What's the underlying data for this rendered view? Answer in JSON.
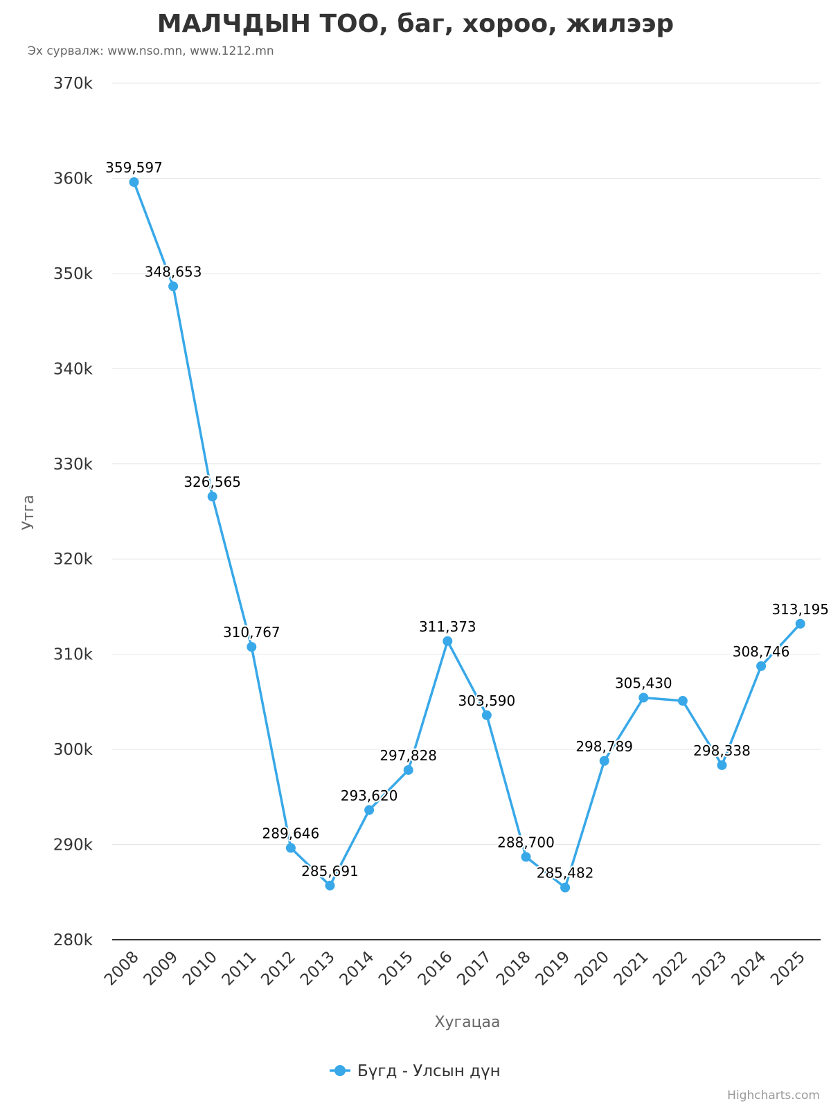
{
  "title": "МАЛЧДЫН ТОО, баг, хороо, жилээр",
  "subtitle": "Эх сурвалж: www.nso.mn, www.1212.mn",
  "credits": "Highcharts.com",
  "chart_data": {
    "type": "line",
    "title": "МАЛЧДЫН ТОО, баг, хороо, жилээр",
    "xlabel": "Хугацаа",
    "ylabel": "Утга",
    "ylim": [
      280000,
      370000
    ],
    "yticks": [
      280000,
      290000,
      300000,
      310000,
      320000,
      330000,
      340000,
      350000,
      360000,
      370000
    ],
    "ytick_labels": [
      "280k",
      "290k",
      "300k",
      "310k",
      "320k",
      "330k",
      "340k",
      "350k",
      "360k",
      "370k"
    ],
    "categories": [
      "2008",
      "2009",
      "2010",
      "2011",
      "2012",
      "2013",
      "2014",
      "2015",
      "2016",
      "2017",
      "2018",
      "2019",
      "2020",
      "2021",
      "2022",
      "2023",
      "2024",
      "2025"
    ],
    "series": [
      {
        "name": "Бүгд - Улсын дүн",
        "color": "#38a8e8",
        "values": [
          359597,
          348653,
          326565,
          310767,
          289646,
          285691,
          293620,
          297828,
          311373,
          303590,
          288700,
          285482,
          298789,
          305430,
          305100,
          298338,
          308746,
          313195
        ],
        "labels": [
          "359,597",
          "348,653",
          "326,565",
          "310,767",
          "289,646",
          "285,691",
          "293,620",
          "297,828",
          "311,373",
          "303,590",
          "288,700",
          "285,482",
          "298,789",
          "305,430",
          "",
          "298,338",
          "308,746",
          "313,195"
        ]
      }
    ],
    "grid": true,
    "legend": "bottom-center"
  }
}
